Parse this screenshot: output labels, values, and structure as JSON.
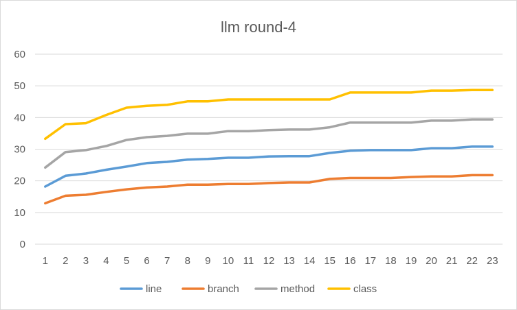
{
  "chart_data": {
    "type": "line",
    "title": "llm round-4",
    "x": [
      "1",
      "2",
      "3",
      "4",
      "5",
      "6",
      "7",
      "8",
      "9",
      "10",
      "11",
      "12",
      "13",
      "14",
      "15",
      "16",
      "17",
      "18",
      "19",
      "20",
      "21",
      "22",
      "23"
    ],
    "ylim": [
      0,
      60
    ],
    "yticks": [
      0,
      10,
      20,
      30,
      40,
      50,
      60
    ],
    "grid": true,
    "legend": "bottom",
    "series": [
      {
        "name": "line",
        "color": "#5b9bd5",
        "values": [
          18.2,
          21.6,
          22.3,
          23.5,
          24.5,
          25.6,
          26.0,
          26.7,
          26.9,
          27.3,
          27.3,
          27.7,
          27.8,
          27.8,
          28.8,
          29.5,
          29.7,
          29.7,
          29.7,
          30.3,
          30.3,
          30.8,
          30.8
        ]
      },
      {
        "name": "branch",
        "color": "#ed7d31",
        "values": [
          12.9,
          15.3,
          15.6,
          16.5,
          17.3,
          17.9,
          18.2,
          18.8,
          18.8,
          19.0,
          19.0,
          19.3,
          19.5,
          19.5,
          20.6,
          20.9,
          20.9,
          20.9,
          21.2,
          21.4,
          21.4,
          21.8,
          21.8
        ]
      },
      {
        "name": "method",
        "color": "#a5a5a5",
        "values": [
          24.2,
          29.1,
          29.7,
          31.0,
          32.9,
          33.8,
          34.2,
          34.9,
          34.9,
          35.7,
          35.7,
          36.0,
          36.2,
          36.2,
          36.9,
          38.4,
          38.4,
          38.4,
          38.4,
          39.0,
          39.0,
          39.4,
          39.4
        ]
      },
      {
        "name": "class",
        "color": "#ffc000",
        "values": [
          33.3,
          37.9,
          38.2,
          40.8,
          43.1,
          43.7,
          44.0,
          45.1,
          45.1,
          45.7,
          45.7,
          45.7,
          45.7,
          45.7,
          45.7,
          47.9,
          47.9,
          47.9,
          47.9,
          48.5,
          48.5,
          48.7,
          48.7
        ]
      }
    ]
  }
}
